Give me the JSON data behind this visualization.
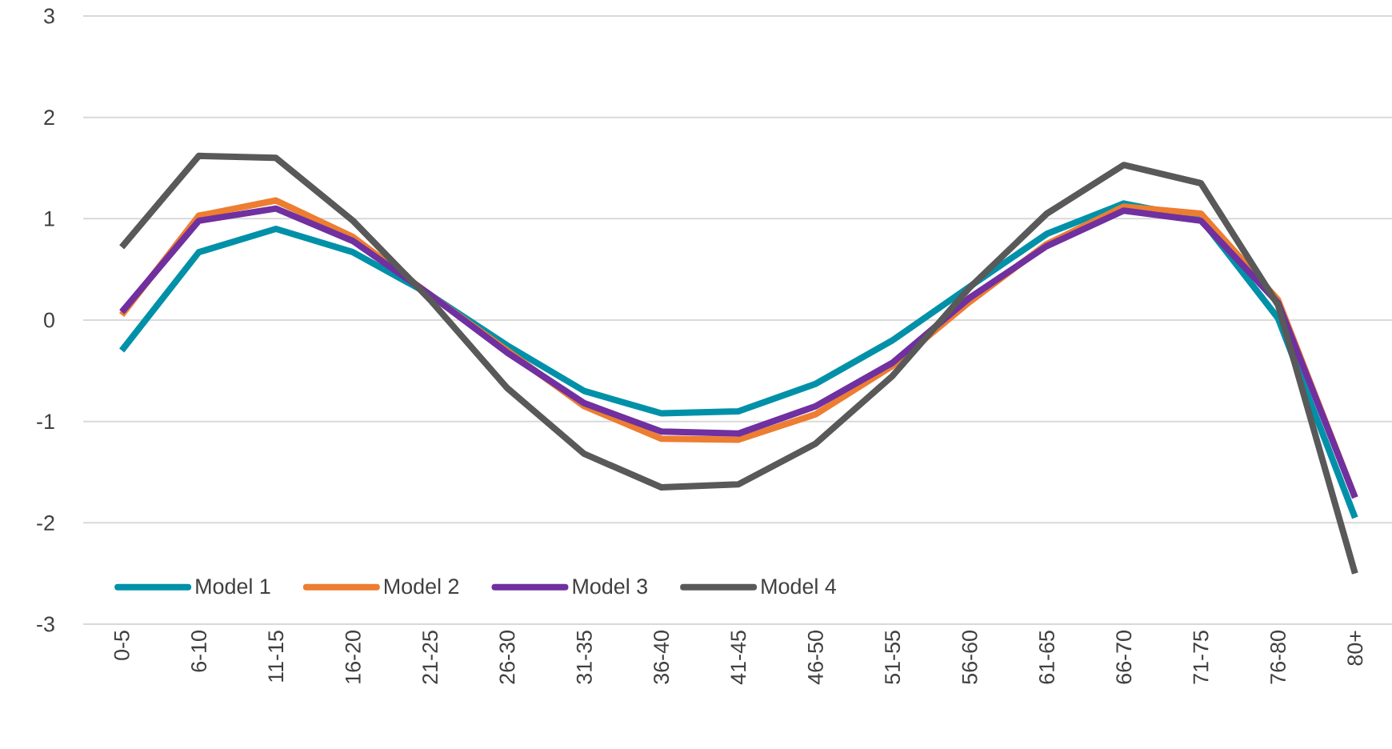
{
  "chart_data": {
    "type": "line",
    "categories": [
      "0-5",
      "6-10",
      "11-15",
      "16-20",
      "21-25",
      "26-30",
      "31-35",
      "36-40",
      "41-45",
      "46-50",
      "51-55",
      "56-60",
      "61-65",
      "66-70",
      "71-75",
      "76-80",
      "80+"
    ],
    "series": [
      {
        "name": "Model 1",
        "color": "#0091a8",
        "values": [
          -0.3,
          0.67,
          0.9,
          0.67,
          0.25,
          -0.25,
          -0.7,
          -0.92,
          -0.9,
          -0.63,
          -0.2,
          0.33,
          0.85,
          1.15,
          1.0,
          0.02,
          -1.95
        ]
      },
      {
        "name": "Model 2",
        "color": "#ed7d31",
        "values": [
          0.05,
          1.03,
          1.18,
          0.82,
          0.25,
          -0.3,
          -0.85,
          -1.17,
          -1.18,
          -0.93,
          -0.45,
          0.18,
          0.75,
          1.12,
          1.05,
          0.2,
          -1.75
        ]
      },
      {
        "name": "Model 3",
        "color": "#7030a0",
        "values": [
          0.08,
          0.98,
          1.1,
          0.78,
          0.25,
          -0.32,
          -0.82,
          -1.1,
          -1.12,
          -0.85,
          -0.42,
          0.22,
          0.73,
          1.08,
          0.98,
          0.17,
          -1.75
        ]
      },
      {
        "name": "Model 4",
        "color": "#595959",
        "values": [
          0.72,
          1.62,
          1.6,
          0.98,
          0.2,
          -0.67,
          -1.32,
          -1.65,
          -1.62,
          -1.22,
          -0.55,
          0.32,
          1.05,
          1.53,
          1.35,
          0.15,
          -2.5
        ]
      }
    ],
    "ylim": [
      -3,
      3
    ],
    "yticks": [
      -3,
      -2,
      -1,
      0,
      1,
      2,
      3
    ],
    "grid": "y",
    "legend": "bottom",
    "marker": "none",
    "line_style": "solid"
  }
}
